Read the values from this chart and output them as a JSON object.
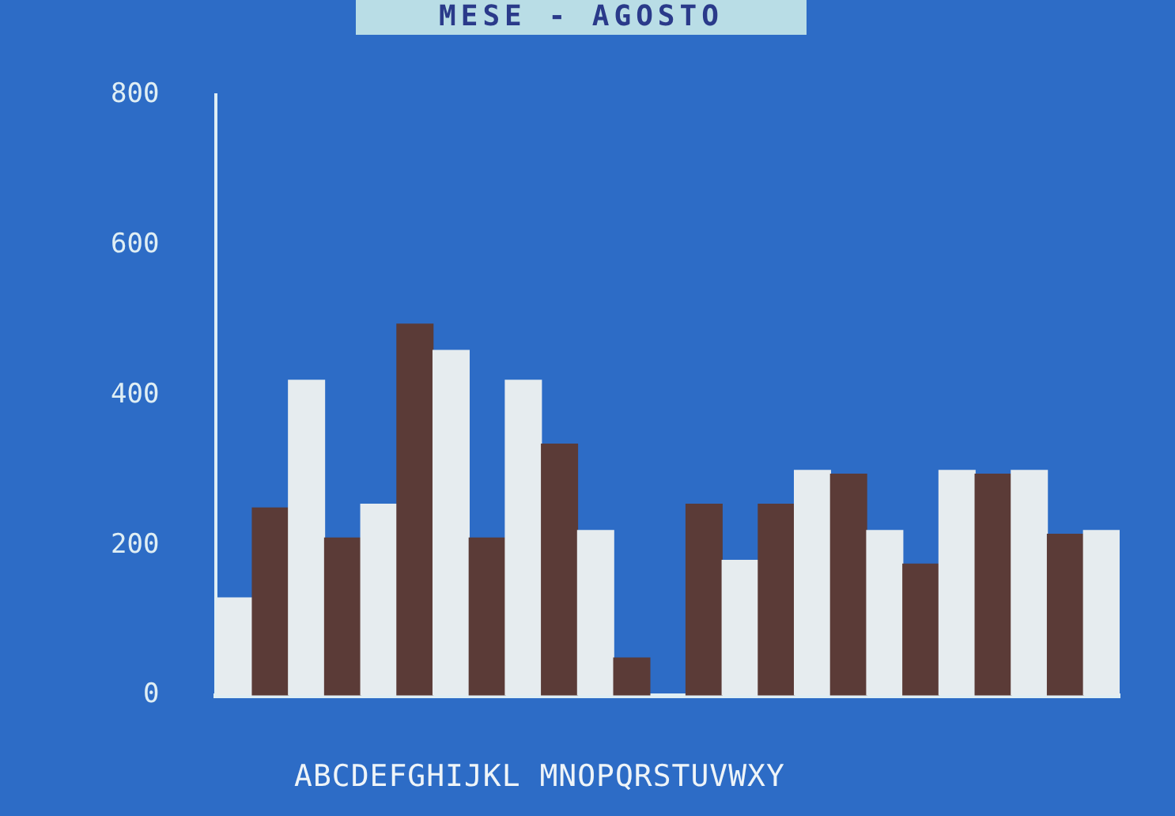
{
  "chart_data": {
    "type": "bar",
    "title": "MESE - AGOSTO",
    "xlabel": "ABCDEFGHIJKL MNOPQRSTUVWXY",
    "categories": [
      null,
      null,
      null,
      null,
      null,
      null,
      null,
      null,
      null,
      null,
      null,
      null,
      null,
      null,
      null,
      null,
      null,
      null,
      null,
      null,
      null,
      null,
      null,
      null,
      null
    ],
    "values": [
      130,
      250,
      420,
      210,
      255,
      495,
      460,
      210,
      420,
      335,
      220,
      50,
      null,
      255,
      180,
      255,
      300,
      295,
      220,
      175,
      300,
      295,
      300,
      215,
      220
    ],
    "colors": [
      "#e6ecef",
      "#5b3b37",
      "#e6ecef",
      "#5b3b37",
      "#e6ecef",
      "#5b3b37",
      "#e6ecef",
      "#5b3b37",
      "#e6ecef",
      "#5b3b37",
      "#e6ecef",
      "#5b3b37",
      "#5b3b37",
      "#5b3b37",
      "#e6ecef",
      "#5b3b37",
      "#e6ecef",
      "#5b3b37",
      "#e6ecef",
      "#5b3b37",
      "#e6ecef",
      "#5b3b37",
      "#e6ecef",
      "#5b3b37",
      "#e6ecef"
    ],
    "ylim": [
      0,
      800
    ],
    "yticks": [
      0,
      200,
      400,
      600,
      800
    ],
    "grid": false,
    "legend": false
  }
}
